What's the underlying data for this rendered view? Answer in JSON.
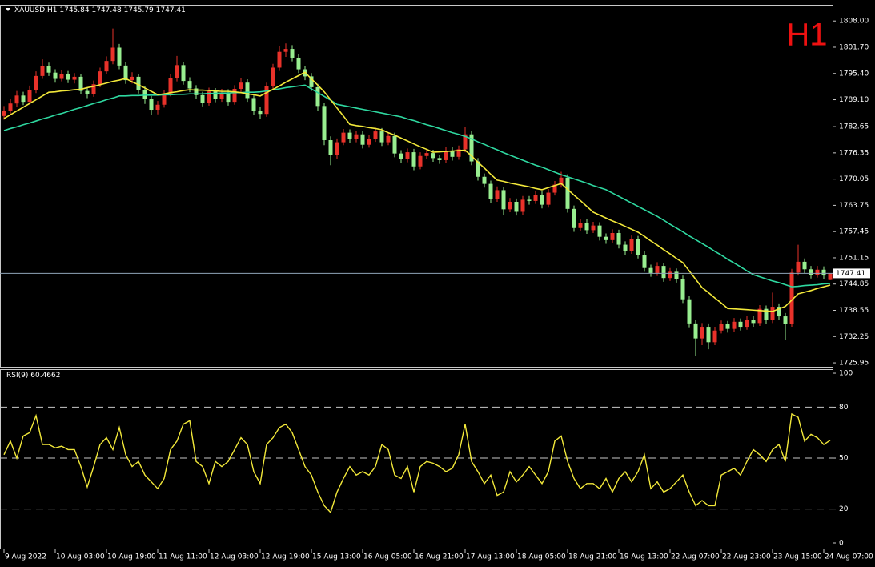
{
  "chart_data": [
    {
      "type": "candlestick",
      "symbol": "XAUUSD,H1",
      "quote": [
        1745.84,
        1747.48,
        1745.79,
        1747.41
      ],
      "annotation": "H1",
      "categories": [
        "9 Aug 2022",
        null,
        null,
        null,
        null,
        null,
        null,
        null,
        "10 Aug 03:00",
        null,
        null,
        null,
        null,
        null,
        null,
        null,
        "10 Aug 19:00",
        null,
        null,
        null,
        null,
        null,
        null,
        null,
        "11 Aug 11:00",
        null,
        null,
        null,
        null,
        null,
        null,
        null,
        "12 Aug 03:00",
        null,
        null,
        null,
        null,
        null,
        null,
        null,
        "12 Aug 19:00",
        null,
        null,
        null,
        null,
        null,
        null,
        null,
        "15 Aug 13:00",
        null,
        null,
        null,
        null,
        null,
        null,
        null,
        "16 Aug 05:00",
        null,
        null,
        null,
        null,
        null,
        null,
        null,
        "16 Aug 21:00",
        null,
        null,
        null,
        null,
        null,
        null,
        null,
        "17 Aug 13:00",
        null,
        null,
        null,
        null,
        null,
        null,
        null,
        "18 Aug 05:00",
        null,
        null,
        null,
        null,
        null,
        null,
        null,
        "18 Aug 21:00",
        null,
        null,
        null,
        null,
        null,
        null,
        null,
        "19 Aug 13:00",
        null,
        null,
        null,
        null,
        null,
        null,
        null,
        "22 Aug 07:00",
        null,
        null,
        null,
        null,
        null,
        null,
        null,
        "22 Aug 23:00",
        null,
        null,
        null,
        null,
        null,
        null,
        null,
        "23 Aug 15:00",
        null,
        null,
        null,
        null,
        null,
        null,
        null,
        "24 Aug 07:00",
        null
      ],
      "open": [
        1785.2,
        1786.5,
        1788.2,
        1790.1,
        1788.6,
        1791.4,
        1794.8,
        1797.2,
        1795.6,
        1794.1,
        1795.3,
        1793.9,
        1794.6,
        1791.2,
        1790.4,
        1792.8,
        1795.9,
        1798.4,
        1801.6,
        1797.3,
        1793.8,
        1794.6,
        1791.5,
        1789.2,
        1786.7,
        1787.9,
        1790.6,
        1794.2,
        1797.4,
        1793.6,
        1791.8,
        1790.2,
        1788.4,
        1791.1,
        1789.3,
        1790.8,
        1788.6,
        1791.7,
        1793.2,
        1789.5,
        1786.4,
        1785.7,
        1792.3,
        1796.8,
        1800.6,
        1801.3,
        1799.2,
        1796.4,
        1794.7,
        1792.1,
        1787.6,
        1779.4,
        1775.8,
        1778.9,
        1781.2,
        1779.6,
        1780.8,
        1778.3,
        1779.7,
        1781.5,
        1778.9,
        1780.4,
        1776.2,
        1774.8,
        1776.5,
        1773.1,
        1775.6,
        1776.3,
        1775.1,
        1774.6,
        1776.9,
        1775.4,
        1777.2,
        1780.8,
        1774.3,
        1770.6,
        1768.9,
        1765.3,
        1767.4,
        1762.8,
        1764.6,
        1762.2,
        1765.1,
        1764.8,
        1766.3,
        1763.9,
        1766.8,
        1768.7,
        1770.4,
        1762.9,
        1758.3,
        1759.6,
        1757.8,
        1758.9,
        1756.2,
        1755.4,
        1757.1,
        1754.3,
        1752.8,
        1755.6,
        1751.9,
        1748.7,
        1747.5,
        1749.2,
        1746.3,
        1747.8,
        1746.1,
        1741.2,
        1735.4,
        1731.8,
        1734.6,
        1730.9,
        1733.7,
        1735.2,
        1734.1,
        1735.8,
        1734.6,
        1736.3,
        1735.5,
        1738.9,
        1736.2,
        1739.4,
        1737.1,
        1735.3,
        1747.6,
        1750.2,
        1748.4,
        1747.1,
        1748.3,
        1745.84
      ],
      "high": [
        1787.6,
        1789.3,
        1791.2,
        1791.0,
        1792.5,
        1795.9,
        1798.8,
        1798.0,
        1796.4,
        1796.2,
        1796.0,
        1795.5,
        1795.2,
        1792.0,
        1793.7,
        1796.8,
        1799.5,
        1806.2,
        1802.5,
        1798.1,
        1795.7,
        1795.3,
        1792.3,
        1790.0,
        1788.8,
        1791.5,
        1795.3,
        1799.6,
        1798.2,
        1794.5,
        1792.6,
        1791.0,
        1792.0,
        1791.9,
        1791.7,
        1791.6,
        1792.6,
        1794.3,
        1794.0,
        1790.3,
        1787.3,
        1793.2,
        1797.7,
        1801.9,
        1802.6,
        1802.2,
        1800.0,
        1797.2,
        1795.5,
        1792.9,
        1788.4,
        1780.3,
        1779.8,
        1782.1,
        1782.0,
        1781.7,
        1781.6,
        1780.6,
        1782.4,
        1782.3,
        1781.3,
        1781.2,
        1777.0,
        1777.4,
        1777.3,
        1776.5,
        1777.2,
        1777.1,
        1775.9,
        1777.8,
        1777.7,
        1778.1,
        1782.6,
        1781.6,
        1775.1,
        1771.4,
        1769.7,
        1768.3,
        1768.2,
        1765.5,
        1765.4,
        1766.0,
        1766.0,
        1767.2,
        1767.1,
        1767.7,
        1769.6,
        1771.8,
        1771.2,
        1763.7,
        1760.5,
        1760.4,
        1759.8,
        1759.7,
        1757.0,
        1758.0,
        1757.9,
        1755.1,
        1756.5,
        1756.4,
        1752.7,
        1749.5,
        1750.1,
        1750.0,
        1748.7,
        1748.6,
        1746.9,
        1742.0,
        1736.2,
        1735.5,
        1735.4,
        1734.6,
        1736.1,
        1736.0,
        1736.7,
        1736.6,
        1737.2,
        1737.1,
        1739.8,
        1739.7,
        1742.8,
        1740.2,
        1737.9,
        1748.5,
        1754.3,
        1751.0,
        1749.2,
        1749.2,
        1749.1,
        1747.48
      ],
      "low": [
        1784.3,
        1785.6,
        1787.4,
        1787.8,
        1788.0,
        1790.7,
        1794.1,
        1794.8,
        1793.2,
        1793.5,
        1793.1,
        1793.0,
        1790.4,
        1789.5,
        1789.8,
        1792.1,
        1795.2,
        1797.6,
        1796.4,
        1792.9,
        1793.0,
        1790.6,
        1788.1,
        1785.4,
        1785.6,
        1787.2,
        1789.9,
        1793.5,
        1792.7,
        1790.9,
        1789.3,
        1787.5,
        1787.7,
        1788.5,
        1788.6,
        1787.7,
        1787.9,
        1791.0,
        1788.6,
        1785.5,
        1784.6,
        1785.0,
        1791.6,
        1796.0,
        1799.4,
        1798.3,
        1795.5,
        1793.8,
        1791.2,
        1786.4,
        1778.2,
        1773.4,
        1774.9,
        1778.2,
        1778.7,
        1778.9,
        1777.4,
        1777.6,
        1779.0,
        1778.0,
        1778.2,
        1775.3,
        1773.9,
        1774.1,
        1772.2,
        1772.4,
        1774.9,
        1774.2,
        1773.7,
        1773.9,
        1774.5,
        1774.7,
        1776.5,
        1773.4,
        1769.7,
        1768.0,
        1764.4,
        1764.6,
        1761.4,
        1762.1,
        1761.3,
        1761.5,
        1763.9,
        1764.1,
        1763.0,
        1763.2,
        1766.1,
        1768.0,
        1762.0,
        1757.4,
        1757.6,
        1756.9,
        1757.1,
        1755.3,
        1754.5,
        1754.7,
        1753.4,
        1751.9,
        1752.1,
        1751.0,
        1747.8,
        1746.6,
        1746.8,
        1745.4,
        1745.6,
        1745.2,
        1740.3,
        1734.5,
        1727.6,
        1730.2,
        1729.2,
        1730.2,
        1733.0,
        1733.2,
        1733.4,
        1733.7,
        1733.9,
        1734.6,
        1734.8,
        1735.3,
        1735.5,
        1736.2,
        1731.4,
        1734.6,
        1746.9,
        1747.5,
        1746.2,
        1746.4,
        1746.0,
        1745.79
      ],
      "close": [
        1786.5,
        1788.2,
        1790.1,
        1788.6,
        1791.4,
        1794.8,
        1797.2,
        1795.6,
        1794.1,
        1795.3,
        1793.9,
        1794.6,
        1791.2,
        1790.4,
        1792.8,
        1795.9,
        1798.4,
        1801.6,
        1797.3,
        1793.8,
        1794.6,
        1791.5,
        1789.2,
        1786.7,
        1787.9,
        1790.6,
        1794.2,
        1797.4,
        1793.6,
        1791.8,
        1790.2,
        1788.4,
        1791.1,
        1789.3,
        1790.8,
        1788.6,
        1791.7,
        1793.2,
        1789.5,
        1786.4,
        1785.7,
        1792.3,
        1796.8,
        1800.6,
        1801.3,
        1799.2,
        1796.4,
        1794.7,
        1792.1,
        1787.6,
        1779.4,
        1775.8,
        1778.9,
        1781.2,
        1779.6,
        1780.8,
        1778.3,
        1779.7,
        1781.5,
        1778.9,
        1780.4,
        1776.2,
        1774.8,
        1776.5,
        1773.1,
        1775.6,
        1776.3,
        1775.1,
        1774.6,
        1776.9,
        1775.4,
        1777.2,
        1780.8,
        1774.3,
        1770.6,
        1768.9,
        1765.3,
        1767.4,
        1762.8,
        1764.6,
        1762.2,
        1765.1,
        1764.8,
        1766.3,
        1763.9,
        1766.8,
        1768.7,
        1770.4,
        1762.9,
        1758.3,
        1759.6,
        1757.8,
        1758.9,
        1756.2,
        1755.4,
        1757.1,
        1754.3,
        1752.8,
        1755.6,
        1751.9,
        1748.7,
        1747.5,
        1749.2,
        1746.3,
        1747.8,
        1746.1,
        1741.2,
        1735.4,
        1731.8,
        1734.6,
        1730.9,
        1733.7,
        1735.2,
        1734.1,
        1735.8,
        1734.6,
        1736.3,
        1735.5,
        1738.9,
        1736.2,
        1739.4,
        1737.1,
        1735.3,
        1747.6,
        1750.2,
        1748.4,
        1747.1,
        1748.3,
        1746.9,
        1747.41
      ],
      "up_color": "#e8322a",
      "down_color": "#98ee90",
      "overlays": [
        {
          "color": "#2ed8a0",
          "values": [
            1781.7,
            1782.2,
            1782.6,
            1783.1,
            1783.5,
            1784.0,
            1784.5,
            1784.9,
            1785.4,
            1785.8,
            1786.3,
            1786.8,
            1787.2,
            1787.7,
            1788.2,
            1788.6,
            1789.1,
            1789.5,
            1790.0,
            1790.0,
            1790.1,
            1790.1,
            1790.2,
            1790.2,
            1790.2,
            1790.3,
            1790.3,
            1790.4,
            1790.4,
            1790.5,
            1790.5,
            1790.5,
            1790.6,
            1790.6,
            1790.7,
            1790.7,
            1790.8,
            1790.8,
            1790.9,
            1790.9,
            1791.0,
            1791.2,
            1791.5,
            1791.7,
            1792.0,
            1792.2,
            1792.4,
            1792.6,
            1791.7,
            1790.8,
            1789.9,
            1789.0,
            1788.0,
            1787.7,
            1787.4,
            1787.1,
            1786.8,
            1786.5,
            1786.2,
            1785.9,
            1785.6,
            1785.3,
            1785.0,
            1784.5,
            1784.1,
            1783.6,
            1783.1,
            1782.7,
            1782.2,
            1781.7,
            1781.2,
            1780.8,
            1780.3,
            1779.7,
            1779.0,
            1778.4,
            1777.7,
            1777.1,
            1776.4,
            1775.8,
            1775.2,
            1774.6,
            1774.0,
            1773.4,
            1772.9,
            1772.3,
            1771.7,
            1771.1,
            1770.6,
            1770.1,
            1769.6,
            1769.1,
            1768.5,
            1768.0,
            1767.5,
            1766.7,
            1765.9,
            1765.1,
            1764.3,
            1763.5,
            1762.7,
            1761.9,
            1761.1,
            1760.2,
            1759.2,
            1758.3,
            1757.4,
            1756.4,
            1755.5,
            1754.6,
            1753.7,
            1752.7,
            1751.8,
            1750.8,
            1749.9,
            1749.0,
            1748.0,
            1747.1,
            1746.6,
            1746.1,
            1745.6,
            1745.2,
            1744.7,
            1744.2,
            1744.3,
            1744.5,
            1744.6,
            1744.7,
            1744.9,
            1745.0
          ]
        },
        {
          "color": "#f2e83a",
          "values": [
            1784.6,
            1785.5,
            1786.4,
            1787.3,
            1788.2,
            1789.1,
            1790.0,
            1790.9,
            1791.0,
            1791.2,
            1791.3,
            1791.5,
            1791.6,
            1792.0,
            1792.3,
            1792.7,
            1793.1,
            1793.5,
            1793.8,
            1794.2,
            1793.4,
            1792.7,
            1791.9,
            1791.1,
            1790.3,
            1790.5,
            1790.8,
            1791.0,
            1791.3,
            1791.5,
            1791.4,
            1791.4,
            1791.3,
            1791.2,
            1791.1,
            1791.1,
            1791.0,
            1790.8,
            1790.5,
            1790.3,
            1790.0,
            1790.8,
            1791.6,
            1792.4,
            1793.3,
            1794.1,
            1794.9,
            1795.7,
            1794.1,
            1792.6,
            1791.0,
            1789.1,
            1787.1,
            1785.2,
            1783.2,
            1782.9,
            1782.7,
            1782.4,
            1782.2,
            1781.9,
            1781.2,
            1780.6,
            1779.9,
            1779.2,
            1778.5,
            1777.8,
            1777.2,
            1776.5,
            1776.6,
            1776.7,
            1776.8,
            1776.9,
            1777.0,
            1775.6,
            1774.1,
            1772.7,
            1771.2,
            1769.8,
            1769.5,
            1769.1,
            1768.8,
            1768.5,
            1768.2,
            1767.8,
            1767.5,
            1768.0,
            1768.5,
            1769.0,
            1767.6,
            1766.2,
            1764.9,
            1763.5,
            1762.1,
            1761.4,
            1760.7,
            1760.0,
            1759.4,
            1758.7,
            1758.0,
            1757.3,
            1756.3,
            1755.2,
            1754.2,
            1753.1,
            1752.1,
            1751.0,
            1750.0,
            1748.0,
            1746.0,
            1744.0,
            1742.8,
            1741.5,
            1740.3,
            1739.0,
            1738.9,
            1738.8,
            1738.7,
            1738.6,
            1738.5,
            1738.4,
            1738.3,
            1738.9,
            1739.5,
            1741.0,
            1742.5,
            1742.9,
            1743.3,
            1743.8,
            1744.2,
            1744.6
          ]
        }
      ],
      "price_line_color": "#8fa4b8",
      "ylim": [
        1725.0,
        1811.5
      ],
      "yticks": [
        {
          "value": 1808,
          "label": "1808.00"
        },
        {
          "value": 1801.7,
          "label": "1801.70"
        },
        {
          "value": 1795.4,
          "label": "1795.40"
        },
        {
          "value": 1789.1,
          "label": "1789.10"
        },
        {
          "value": 1782.65,
          "label": "1782.65"
        },
        {
          "value": 1776.35,
          "label": "1776.35"
        },
        {
          "value": 1770.05,
          "label": "1770.05"
        },
        {
          "value": 1763.75,
          "label": "1763.75"
        },
        {
          "value": 1757.45,
          "label": "1757.45"
        },
        {
          "value": 1751.15,
          "label": "1751.15"
        },
        {
          "value": 1744.85,
          "label": "1744.85"
        },
        {
          "value": 1738.55,
          "label": "1738.55"
        },
        {
          "value": 1732.25,
          "label": "1732.25"
        },
        {
          "value": 1725.95,
          "label": "1725.95"
        }
      ]
    },
    {
      "type": "line",
      "series": [
        {
          "name": "RSI(9)",
          "color": "#f2e83a",
          "values": [
            52,
            60,
            50,
            63,
            65,
            75,
            58,
            58,
            56,
            57,
            55,
            55,
            45,
            33,
            45,
            58,
            62,
            55,
            68,
            52,
            45,
            48,
            40,
            36,
            32,
            38,
            55,
            60,
            70,
            72,
            48,
            45,
            35,
            48,
            45,
            48,
            55,
            62,
            58,
            42,
            35,
            58,
            62,
            68,
            70,
            65,
            55,
            45,
            40,
            30,
            22,
            18,
            30,
            38,
            45,
            40,
            42,
            40,
            45,
            58,
            55,
            40,
            38,
            45,
            30,
            45,
            48,
            47,
            45,
            42,
            44,
            52,
            70,
            48,
            42,
            35,
            40,
            28,
            30,
            42,
            36,
            40,
            45,
            40,
            35,
            42,
            60,
            63,
            48,
            38,
            32,
            35,
            35,
            32,
            38,
            30,
            38,
            42,
            36,
            42,
            52,
            32,
            36,
            30,
            32,
            36,
            40,
            30,
            22,
            25,
            22,
            22,
            40,
            42,
            44,
            40,
            48,
            55,
            52,
            48,
            55,
            58,
            48,
            76,
            74,
            60,
            64,
            62,
            58,
            60.4662
          ]
        }
      ],
      "ylim": [
        -3.3,
        101.9
      ],
      "yticks": [
        0,
        20,
        50,
        80,
        100
      ],
      "levels": [
        20,
        50,
        80
      ]
    }
  ]
}
